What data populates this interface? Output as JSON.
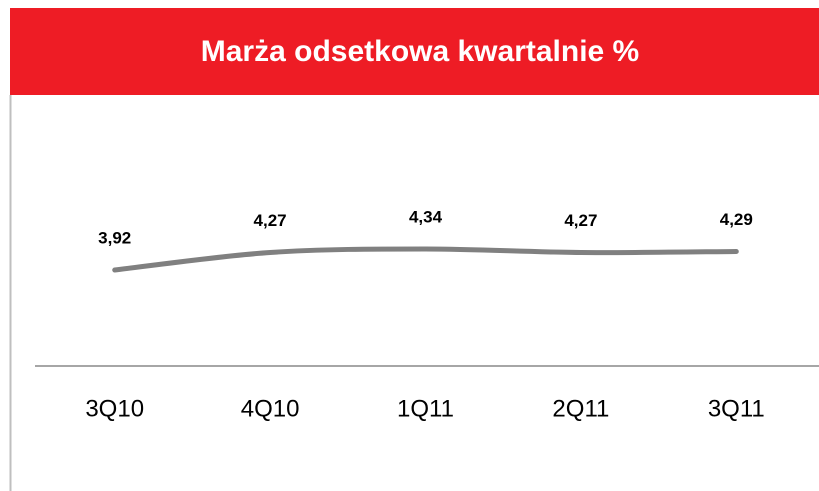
{
  "chart_data": {
    "type": "line",
    "title": "Marża odsetkowa kwartalnie  %",
    "categories": [
      "3Q10",
      "4Q10",
      "1Q11",
      "2Q11",
      "3Q11"
    ],
    "values": [
      3.92,
      4.27,
      4.34,
      4.27,
      4.29
    ],
    "value_labels": [
      "3,92",
      "4,27",
      "4,34",
      "4,27",
      "4,29"
    ],
    "color": "#808080",
    "ylim": [
      2,
      7.3
    ]
  }
}
